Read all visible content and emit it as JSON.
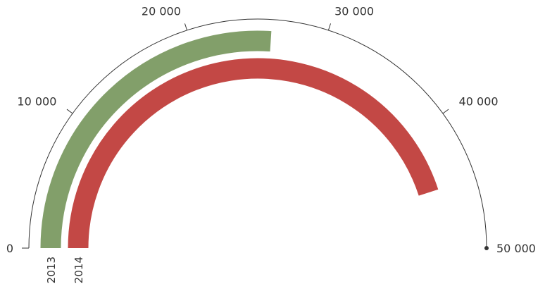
{
  "chart_data": {
    "type": "radial-bar",
    "axis": {
      "min": 0,
      "max": 50000,
      "ticks": [
        0,
        10000,
        20000,
        30000,
        40000,
        50000
      ],
      "tick_labels": [
        "0",
        "10 000",
        "20 000",
        "30 000",
        "40 000",
        "50 000"
      ],
      "color": "#333333"
    },
    "series": [
      {
        "category": "2013",
        "value": 26000,
        "color": "#829f6a"
      },
      {
        "category": "2014",
        "value": 45000,
        "color": "#c34845"
      }
    ]
  }
}
